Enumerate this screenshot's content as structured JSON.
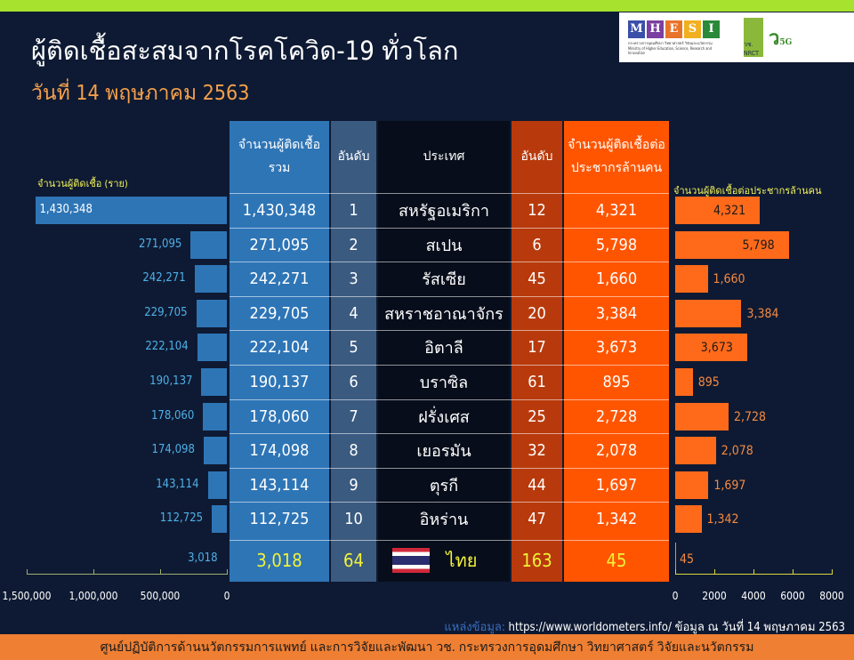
{
  "header": {
    "title": "ผู้ติดเชื้อสะสมจากโรคโควิด-19 ทั่วโลก",
    "date": "วันที่ 14 พฤษภาคม 2563",
    "logos": {
      "mhesi": [
        "M",
        "H",
        "E",
        "S",
        "I"
      ],
      "mhesi_colors": [
        "#3a4fa8",
        "#7a3fa0",
        "#e8742a",
        "#f0b020",
        "#2a8a3a"
      ],
      "mhesi_text": "กระทรวงการอุดมศึกษา วิทยาศาสตร์ วิจัยและนวัตกรรม Ministry of Higher Education, Science, Research and Innovation",
      "nrct": "วช. NRCT",
      "v5g": "ว",
      "v5g_sub": "5G"
    }
  },
  "table": {
    "headers": [
      "จำนวนผู้ติดเชื้อรวม",
      "อันดับ",
      "ประเทศ",
      "อันดับ",
      "จำนวนผู้ติดเชื้อต่อประชากรล้านคน"
    ],
    "rows": [
      {
        "total": "1,430,348",
        "rank": "1",
        "country": "สหรัฐอเมริกา",
        "rank_pm": "12",
        "per_million": "4,321"
      },
      {
        "total": "271,095",
        "rank": "2",
        "country": "สเปน",
        "rank_pm": "6",
        "per_million": "5,798"
      },
      {
        "total": "242,271",
        "rank": "3",
        "country": "รัสเซีย",
        "rank_pm": "45",
        "per_million": "1,660"
      },
      {
        "total": "229,705",
        "rank": "4",
        "country": "สหราชอาณาจักร",
        "rank_pm": "20",
        "per_million": "3,384"
      },
      {
        "total": "222,104",
        "rank": "5",
        "country": "อิตาลี",
        "rank_pm": "17",
        "per_million": "3,673"
      },
      {
        "total": "190,137",
        "rank": "6",
        "country": "บราซิล",
        "rank_pm": "61",
        "per_million": "895"
      },
      {
        "total": "178,060",
        "rank": "7",
        "country": "ฝรั่งเศส",
        "rank_pm": "25",
        "per_million": "2,728"
      },
      {
        "total": "174,098",
        "rank": "8",
        "country": "เยอรมัน",
        "rank_pm": "32",
        "per_million": "2,078"
      },
      {
        "total": "143,114",
        "rank": "9",
        "country": "ตุรกี",
        "rank_pm": "44",
        "per_million": "1,697"
      },
      {
        "total": "112,725",
        "rank": "10",
        "country": "อิหร่าน",
        "rank_pm": "47",
        "per_million": "1,342"
      },
      {
        "total": "3,018",
        "rank": "64",
        "country": "ไทย",
        "rank_pm": "163",
        "per_million": "45"
      }
    ]
  },
  "chart_data": [
    {
      "type": "bar",
      "orientation": "horizontal-reversed",
      "ylabel": "จำนวนผู้ติดเชื้อ (ราย)",
      "values": [
        1430348,
        271095,
        242271,
        229705,
        222104,
        190137,
        178060,
        174098,
        143114,
        112725,
        3018
      ],
      "labels": [
        "1,430,348",
        "271,095",
        "242,271",
        "229,705",
        "222,104",
        "190,137",
        "178,060",
        "174,098",
        "143,114",
        "112,725",
        "3,018"
      ],
      "xlim": [
        0,
        1500000
      ],
      "ticks": [
        "1,500,000",
        "1,000,000",
        "500,000",
        "0"
      ],
      "color": "#2e75b6"
    },
    {
      "type": "bar",
      "orientation": "horizontal",
      "ylabel": "จำนวนผู้ติดเชื้อต่อประชากรล้านคน",
      "values": [
        4321,
        5798,
        1660,
        3384,
        3673,
        895,
        2728,
        2078,
        1697,
        1342,
        45
      ],
      "labels": [
        "4,321",
        "5,798",
        "1,660",
        "3,384",
        "3,673",
        "895",
        "2,728",
        "2,078",
        "1,697",
        "1,342",
        "45"
      ],
      "xlim": [
        0,
        8000
      ],
      "ticks": [
        "0",
        "2000",
        "4000",
        "6000",
        "8000"
      ],
      "color": "#ff6a1a"
    }
  ],
  "source": {
    "label": "แหล่งข้อมูล:",
    "text": "https://www.worldometers.info/ ข้อมูล ณ วันที่ 14 พฤษภาคม 2563"
  },
  "footer": "ศูนย์ปฏิบัติการด้านนวัตกรรมการแพทย์ และการวิจัยและพัฒนา วช. กระทรวงการอุดมศึกษา วิทยาศาสตร์ วิจัยและนวัตกรรม"
}
